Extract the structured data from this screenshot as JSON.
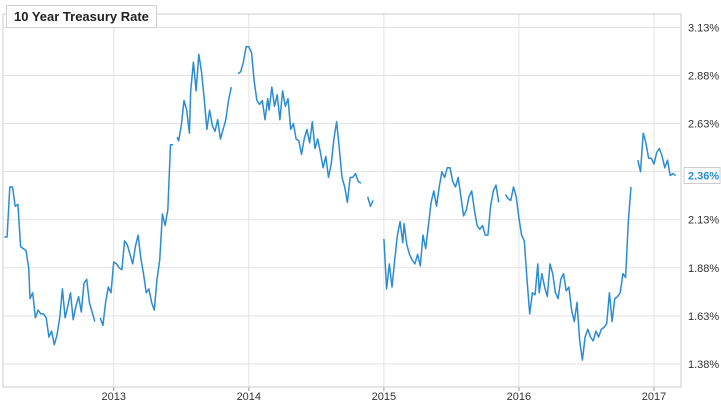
{
  "chart_data": {
    "type": "line",
    "title": "10 Year Treasury Rate",
    "xlabel": "",
    "ylabel": "",
    "x_ticks": [
      2013,
      2014,
      2015,
      2016,
      2017
    ],
    "x_tick_labels": [
      "2013",
      "2014",
      "2015",
      "2016",
      "2017"
    ],
    "y_ticks": [
      1.38,
      1.63,
      1.88,
      2.13,
      2.38,
      2.63,
      2.88,
      3.13
    ],
    "y_tick_labels": [
      "1.38%",
      "1.63%",
      "1.88%",
      "2.13%",
      "",
      "2.63%",
      "2.88%",
      "3.13%"
    ],
    "xlim": [
      2012.18,
      2017.2
    ],
    "ylim": [
      1.26,
      3.2
    ],
    "grid": true,
    "line_color": "#2b8cd6",
    "last_value": 2.36,
    "last_value_label": "2.36%",
    "series": [
      {
        "values": [
          [
            2012.19,
            2.04
          ],
          [
            2012.21,
            2.04
          ],
          [
            2012.23,
            2.3
          ],
          [
            2012.25,
            2.3
          ],
          [
            2012.27,
            2.2
          ],
          [
            2012.29,
            2.21
          ],
          [
            2012.31,
            1.99
          ],
          [
            2012.33,
            1.98
          ],
          [
            2012.35,
            1.97
          ],
          [
            2012.37,
            1.88
          ],
          [
            2012.38,
            1.72
          ],
          [
            2012.4,
            1.75
          ],
          [
            2012.42,
            1.62
          ],
          [
            2012.44,
            1.66
          ],
          [
            2012.46,
            1.64
          ],
          [
            2012.48,
            1.64
          ],
          [
            2012.5,
            1.62
          ],
          [
            2012.52,
            1.52
          ],
          [
            2012.54,
            1.55
          ],
          [
            2012.56,
            1.48
          ],
          [
            2012.58,
            1.53
          ],
          [
            2012.6,
            1.62
          ],
          [
            2012.62,
            1.77
          ],
          [
            2012.64,
            1.62
          ],
          [
            2012.66,
            1.68
          ],
          [
            2012.68,
            1.75
          ],
          [
            2012.7,
            1.61
          ],
          [
            2012.72,
            1.68
          ],
          [
            2012.74,
            1.73
          ],
          [
            2012.76,
            1.65
          ],
          [
            2012.78,
            1.8
          ],
          [
            2012.8,
            1.82
          ],
          [
            2012.82,
            1.7
          ],
          [
            2012.84,
            1.65
          ],
          [
            2012.86,
            1.6
          ],
          null,
          [
            2012.9,
            1.62
          ],
          [
            2012.92,
            1.58
          ],
          [
            2012.94,
            1.7
          ],
          [
            2012.96,
            1.78
          ],
          [
            2012.98,
            1.75
          ],
          [
            2013.0,
            1.91
          ],
          [
            2013.02,
            1.9
          ],
          [
            2013.04,
            1.88
          ],
          [
            2013.06,
            1.87
          ],
          [
            2013.08,
            2.02
          ],
          [
            2013.1,
            2.0
          ],
          [
            2013.12,
            1.95
          ],
          [
            2013.14,
            1.9
          ],
          [
            2013.16,
            1.99
          ],
          [
            2013.18,
            2.05
          ],
          [
            2013.2,
            1.93
          ],
          [
            2013.22,
            1.85
          ],
          [
            2013.24,
            1.75
          ],
          [
            2013.26,
            1.77
          ],
          [
            2013.28,
            1.7
          ],
          [
            2013.3,
            1.66
          ],
          [
            2013.32,
            1.82
          ],
          [
            2013.34,
            1.92
          ],
          [
            2013.36,
            2.16
          ],
          [
            2013.38,
            2.1
          ],
          [
            2013.4,
            2.18
          ],
          [
            2013.42,
            2.52
          ],
          [
            2013.44,
            2.52
          ],
          null,
          [
            2013.47,
            2.56
          ],
          [
            2013.48,
            2.54
          ],
          [
            2013.5,
            2.62
          ],
          [
            2013.52,
            2.75
          ],
          [
            2013.54,
            2.7
          ],
          [
            2013.56,
            2.58
          ],
          [
            2013.57,
            2.8
          ],
          [
            2013.59,
            2.95
          ],
          [
            2013.61,
            2.8
          ],
          [
            2013.63,
            2.99
          ],
          [
            2013.65,
            2.9
          ],
          [
            2013.67,
            2.76
          ],
          [
            2013.69,
            2.6
          ],
          [
            2013.71,
            2.7
          ],
          [
            2013.73,
            2.62
          ],
          [
            2013.75,
            2.59
          ],
          [
            2013.77,
            2.65
          ],
          [
            2013.79,
            2.55
          ],
          [
            2013.81,
            2.6
          ],
          [
            2013.83,
            2.65
          ],
          [
            2013.85,
            2.75
          ],
          [
            2013.87,
            2.82
          ],
          null,
          [
            2013.92,
            2.89
          ],
          [
            2013.94,
            2.9
          ],
          [
            2013.96,
            2.95
          ],
          [
            2013.98,
            3.03
          ],
          [
            2014.0,
            3.03
          ],
          [
            2014.02,
            3.0
          ],
          [
            2014.04,
            2.85
          ],
          [
            2014.06,
            2.75
          ],
          [
            2014.08,
            2.73
          ],
          [
            2014.1,
            2.75
          ],
          [
            2014.12,
            2.65
          ],
          [
            2014.14,
            2.76
          ],
          [
            2014.15,
            2.7
          ],
          [
            2014.17,
            2.82
          ],
          [
            2014.19,
            2.72
          ],
          [
            2014.21,
            2.78
          ],
          [
            2014.23,
            2.65
          ],
          [
            2014.25,
            2.8
          ],
          [
            2014.27,
            2.72
          ],
          [
            2014.29,
            2.76
          ],
          [
            2014.31,
            2.6
          ],
          [
            2014.33,
            2.63
          ],
          [
            2014.35,
            2.55
          ],
          [
            2014.37,
            2.54
          ],
          [
            2014.39,
            2.47
          ],
          [
            2014.41,
            2.55
          ],
          [
            2014.43,
            2.6
          ],
          [
            2014.45,
            2.53
          ],
          [
            2014.47,
            2.64
          ],
          [
            2014.49,
            2.5
          ],
          [
            2014.51,
            2.55
          ],
          [
            2014.53,
            2.48
          ],
          [
            2014.55,
            2.4
          ],
          [
            2014.57,
            2.46
          ],
          [
            2014.59,
            2.35
          ],
          [
            2014.61,
            2.42
          ],
          [
            2014.63,
            2.55
          ],
          [
            2014.65,
            2.64
          ],
          [
            2014.67,
            2.5
          ],
          [
            2014.69,
            2.35
          ],
          [
            2014.71,
            2.3
          ],
          [
            2014.73,
            2.22
          ],
          [
            2014.75,
            2.35
          ],
          [
            2014.77,
            2.35
          ],
          [
            2014.79,
            2.37
          ],
          [
            2014.81,
            2.33
          ],
          [
            2014.83,
            2.32
          ],
          null,
          [
            2014.88,
            2.25
          ],
          [
            2014.9,
            2.2
          ],
          [
            2014.92,
            2.23
          ],
          null,
          [
            2015.0,
            2.03
          ],
          [
            2015.02,
            1.77
          ],
          [
            2015.04,
            1.9
          ],
          [
            2015.06,
            1.78
          ],
          [
            2015.08,
            1.92
          ],
          [
            2015.1,
            2.05
          ],
          [
            2015.12,
            2.12
          ],
          [
            2015.14,
            2.01
          ],
          [
            2015.15,
            2.11
          ],
          [
            2015.17,
            2.0
          ],
          [
            2015.19,
            1.95
          ],
          [
            2015.21,
            1.92
          ],
          [
            2015.23,
            1.9
          ],
          [
            2015.25,
            1.95
          ],
          [
            2015.27,
            1.89
          ],
          [
            2015.29,
            2.05
          ],
          [
            2015.31,
            1.98
          ],
          [
            2015.33,
            2.1
          ],
          [
            2015.35,
            2.22
          ],
          [
            2015.37,
            2.28
          ],
          [
            2015.39,
            2.2
          ],
          [
            2015.41,
            2.3
          ],
          [
            2015.43,
            2.38
          ],
          [
            2015.45,
            2.35
          ],
          [
            2015.47,
            2.4
          ],
          [
            2015.49,
            2.4
          ],
          [
            2015.51,
            2.33
          ],
          [
            2015.53,
            2.3
          ],
          [
            2015.55,
            2.35
          ],
          [
            2015.57,
            2.25
          ],
          [
            2015.59,
            2.15
          ],
          [
            2015.61,
            2.18
          ],
          [
            2015.63,
            2.25
          ],
          [
            2015.65,
            2.28
          ],
          [
            2015.67,
            2.18
          ],
          [
            2015.69,
            2.1
          ],
          [
            2015.71,
            2.08
          ],
          [
            2015.73,
            2.1
          ],
          [
            2015.75,
            2.05
          ],
          [
            2015.77,
            2.05
          ],
          [
            2015.79,
            2.2
          ],
          [
            2015.81,
            2.28
          ],
          [
            2015.83,
            2.31
          ],
          [
            2015.85,
            2.22
          ],
          null,
          [
            2015.9,
            2.26
          ],
          [
            2015.92,
            2.24
          ],
          [
            2015.94,
            2.23
          ],
          [
            2015.96,
            2.3
          ],
          [
            2015.98,
            2.25
          ],
          [
            2016.0,
            2.14
          ],
          [
            2016.02,
            2.05
          ],
          [
            2016.04,
            2.02
          ],
          [
            2016.06,
            1.82
          ],
          [
            2016.08,
            1.64
          ],
          [
            2016.1,
            1.75
          ],
          [
            2016.12,
            1.74
          ],
          [
            2016.14,
            1.9
          ],
          [
            2016.15,
            1.75
          ],
          [
            2016.17,
            1.85
          ],
          [
            2016.19,
            1.78
          ],
          [
            2016.21,
            1.73
          ],
          [
            2016.23,
            1.9
          ],
          [
            2016.25,
            1.85
          ],
          [
            2016.27,
            1.75
          ],
          [
            2016.29,
            1.72
          ],
          [
            2016.31,
            1.82
          ],
          [
            2016.33,
            1.85
          ],
          [
            2016.35,
            1.76
          ],
          [
            2016.37,
            1.78
          ],
          [
            2016.39,
            1.66
          ],
          [
            2016.41,
            1.6
          ],
          [
            2016.43,
            1.7
          ],
          [
            2016.45,
            1.5
          ],
          [
            2016.47,
            1.4
          ],
          [
            2016.49,
            1.52
          ],
          [
            2016.51,
            1.56
          ],
          [
            2016.53,
            1.52
          ],
          [
            2016.55,
            1.5
          ],
          [
            2016.57,
            1.55
          ],
          [
            2016.59,
            1.52
          ],
          [
            2016.61,
            1.56
          ],
          [
            2016.63,
            1.57
          ],
          [
            2016.65,
            1.59
          ],
          [
            2016.67,
            1.75
          ],
          [
            2016.69,
            1.6
          ],
          [
            2016.71,
            1.72
          ],
          [
            2016.73,
            1.73
          ],
          [
            2016.75,
            1.75
          ],
          [
            2016.77,
            1.85
          ],
          [
            2016.79,
            1.83
          ],
          [
            2016.81,
            2.12
          ],
          [
            2016.83,
            2.3
          ],
          null,
          [
            2016.88,
            2.44
          ],
          [
            2016.9,
            2.38
          ],
          [
            2016.92,
            2.58
          ],
          [
            2016.94,
            2.53
          ],
          [
            2016.96,
            2.45
          ],
          [
            2016.98,
            2.45
          ],
          [
            2017.0,
            2.42
          ],
          [
            2017.02,
            2.48
          ],
          [
            2017.04,
            2.5
          ],
          [
            2017.06,
            2.46
          ],
          [
            2017.08,
            2.4
          ],
          [
            2017.1,
            2.44
          ],
          [
            2017.12,
            2.36
          ],
          [
            2017.14,
            2.37
          ],
          [
            2017.16,
            2.36
          ]
        ]
      }
    ]
  }
}
